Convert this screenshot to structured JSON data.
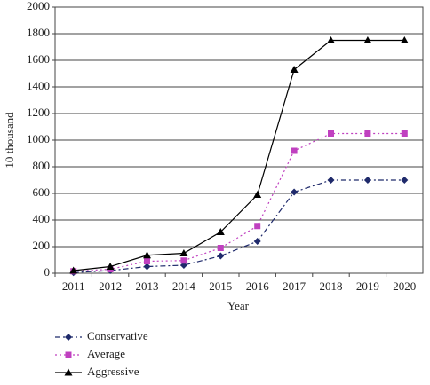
{
  "chart_data": {
    "type": "line",
    "x_label": "Year",
    "y_label": "10 thousand",
    "categories": [
      "2011",
      "2012",
      "2013",
      "2014",
      "2015",
      "2016",
      "2017",
      "2018",
      "2019",
      "2020"
    ],
    "series": [
      {
        "name": "Conservative",
        "color": "#1f2a6b",
        "dash": "6 3 2 3",
        "marker": "diamond",
        "values": [
          5,
          20,
          50,
          60,
          130,
          240,
          610,
          700,
          700,
          700
        ]
      },
      {
        "name": "Average",
        "color": "#c040c0",
        "dash": "2 3",
        "marker": "square",
        "values": [
          15,
          30,
          90,
          95,
          190,
          355,
          920,
          1050,
          1050,
          1050
        ]
      },
      {
        "name": "Aggressive",
        "color": "#000000",
        "dash": "none",
        "marker": "triangle",
        "values": [
          20,
          50,
          135,
          150,
          310,
          590,
          1530,
          1750,
          1750,
          1750
        ]
      }
    ],
    "ylim": [
      0,
      2000
    ],
    "yticks": [
      0,
      200,
      400,
      600,
      800,
      1000,
      1200,
      1400,
      1600,
      1800,
      2000
    ],
    "grid": true,
    "legend": "bottom-left"
  }
}
